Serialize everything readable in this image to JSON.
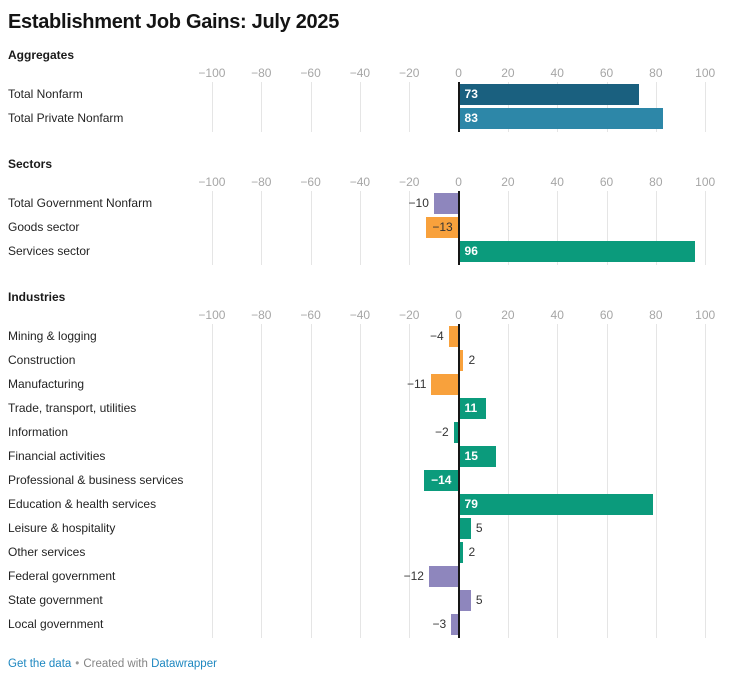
{
  "title": "Establishment Job Gains: July 2025",
  "colors": {
    "dark_blue": "#1a607f",
    "blue": "#2d87a8",
    "orange": "#f8a13c",
    "green": "#0b9b7c",
    "purple": "#8e86bd",
    "link_blue": "#1d87c0",
    "tick_gray": "#a6a6a6",
    "grid_gray": "#e5e5e5",
    "zero_line": "#161616"
  },
  "chart_data": {
    "type": "bar",
    "orientation": "horizontal",
    "title": "Establishment Job Gains: July 2025",
    "value_axis": {
      "min": -102,
      "max": 105.6,
      "ticks": [
        -100,
        -80,
        -60,
        -40,
        -20,
        0,
        20,
        40,
        60,
        80,
        100
      ],
      "grid": true
    },
    "sections": [
      {
        "name": "Aggregates",
        "rows": [
          {
            "label": "Total Nonfarm",
            "value": 73,
            "color": "dark_blue",
            "label_style": "inside-white"
          },
          {
            "label": "Total Private Nonfarm",
            "value": 83,
            "color": "blue",
            "label_style": "inside-white"
          }
        ]
      },
      {
        "name": "Sectors",
        "rows": [
          {
            "label": "Total Government Nonfarm",
            "value": -10,
            "color": "purple",
            "label_style": "outside"
          },
          {
            "label": "Goods sector",
            "value": -13,
            "color": "orange",
            "label_style": "inside-dark"
          },
          {
            "label": "Services sector",
            "value": 96,
            "color": "green",
            "label_style": "inside-white"
          }
        ]
      },
      {
        "name": "Industries",
        "rows": [
          {
            "label": "Mining & logging",
            "value": -4,
            "color": "orange",
            "label_style": "outside"
          },
          {
            "label": "Construction",
            "value": 2,
            "color": "orange",
            "label_style": "outside"
          },
          {
            "label": "Manufacturing",
            "value": -11,
            "color": "orange",
            "label_style": "outside"
          },
          {
            "label": "Trade, transport, utilities",
            "value": 11,
            "color": "green",
            "label_style": "inside-white"
          },
          {
            "label": "Information",
            "value": -2,
            "color": "green",
            "label_style": "outside"
          },
          {
            "label": "Financial activities",
            "value": 15,
            "color": "green",
            "label_style": "inside-white"
          },
          {
            "label": "Professional & business services",
            "value": -14,
            "color": "green",
            "label_style": "inside-white"
          },
          {
            "label": "Education & health services",
            "value": 79,
            "color": "green",
            "label_style": "inside-white"
          },
          {
            "label": "Leisure & hospitality",
            "value": 5,
            "color": "green",
            "label_style": "outside"
          },
          {
            "label": "Other services",
            "value": 2,
            "color": "green",
            "label_style": "outside"
          },
          {
            "label": "Federal government",
            "value": -12,
            "color": "purple",
            "label_style": "outside"
          },
          {
            "label": "State government",
            "value": 5,
            "color": "purple",
            "label_style": "outside"
          },
          {
            "label": "Local government",
            "value": -3,
            "color": "purple",
            "label_style": "outside"
          }
        ]
      }
    ]
  },
  "footer": {
    "get_data_label": "Get the data",
    "separator": "•",
    "created_text": "Created with",
    "datawrapper_label": "Datawrapper"
  }
}
